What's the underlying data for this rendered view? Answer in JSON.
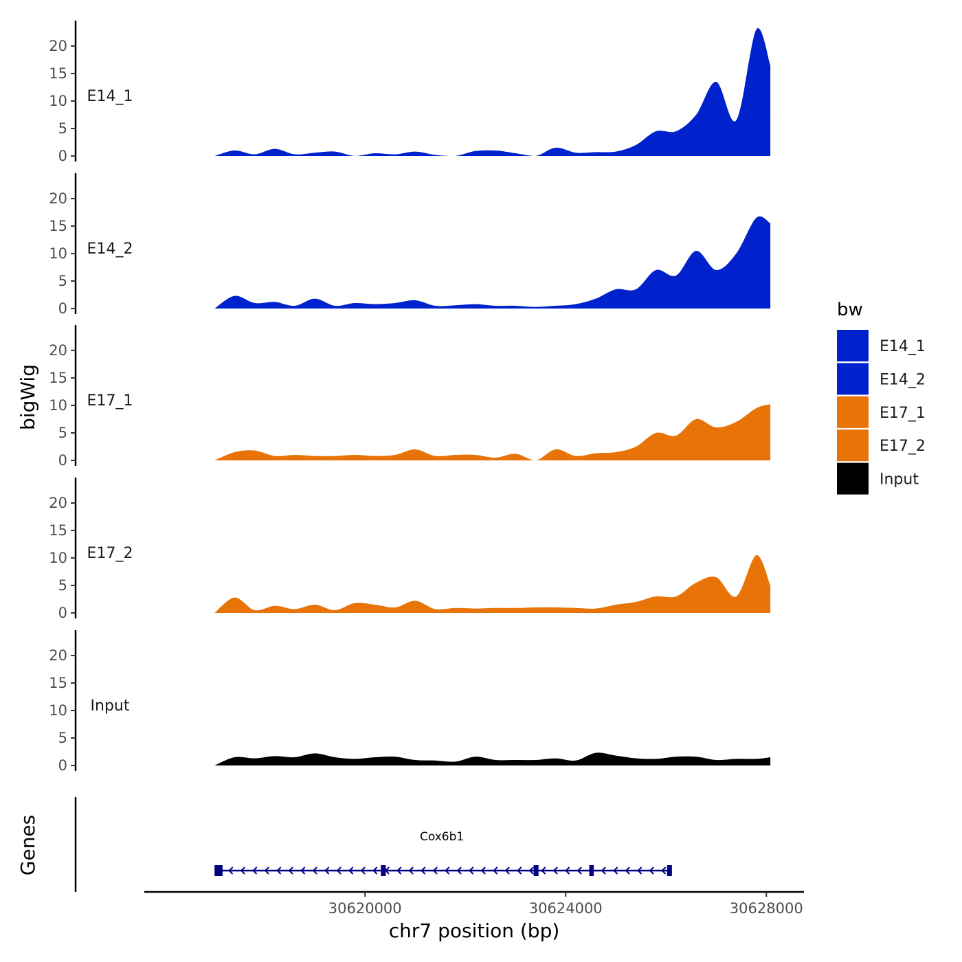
{
  "chart_data": {
    "type": "area",
    "x_axis": {
      "label": "chr7 position (bp)",
      "range": [
        30615600,
        30628750
      ],
      "ticks": [
        30620000,
        30624000,
        30628000
      ],
      "tick_labels": [
        "30620000",
        "30624000",
        "30628000"
      ]
    },
    "y_axis": {
      "label": "bigWig",
      "range": [
        0,
        24
      ],
      "ticks": [
        0,
        5,
        10,
        15,
        20
      ],
      "tick_labels": [
        "0",
        "5",
        "10",
        "15",
        "20"
      ]
    },
    "legend": {
      "title": "bw",
      "position": "right",
      "entries": [
        {
          "label": "E14_1",
          "color": "#0022CC"
        },
        {
          "label": "E14_2",
          "color": "#0022CC"
        },
        {
          "label": "E17_1",
          "color": "#E87306"
        },
        {
          "label": "E17_2",
          "color": "#E87306"
        },
        {
          "label": "Input",
          "color": "#000000"
        }
      ]
    },
    "x": [
      30617000,
      30617400,
      30617800,
      30618200,
      30618600,
      30619000,
      30619400,
      30619800,
      30620200,
      30620600,
      30621000,
      30621400,
      30621800,
      30622200,
      30622600,
      30623000,
      30623400,
      30623800,
      30624200,
      30624600,
      30625000,
      30625400,
      30625800,
      30626200,
      30626600,
      30627000,
      30627400,
      30627800,
      30628080
    ],
    "series": [
      {
        "name": "E14_1",
        "color": "#0022CC",
        "values": [
          0,
          1,
          0.3,
          1.3,
          0.3,
          0.6,
          0.8,
          0,
          0.5,
          0.3,
          0.8,
          0.2,
          0,
          0.9,
          1.0,
          0.5,
          0,
          1.5,
          0.6,
          0.7,
          0.8,
          2.0,
          4.5,
          4.5,
          7.5,
          13.5,
          6.5,
          23,
          16.5
        ]
      },
      {
        "name": "E14_2",
        "color": "#0022CC",
        "values": [
          0,
          2.3,
          1.0,
          1.2,
          0.5,
          1.8,
          0.5,
          1.0,
          0.8,
          1.0,
          1.5,
          0.5,
          0.6,
          0.8,
          0.5,
          0.5,
          0.3,
          0.5,
          0.8,
          1.8,
          3.5,
          3.5,
          7.0,
          6.0,
          10.5,
          7.0,
          10.0,
          16.5,
          15.5
        ]
      },
      {
        "name": "E17_1",
        "color": "#E87306",
        "values": [
          0,
          1.5,
          1.8,
          0.8,
          1.0,
          0.8,
          0.8,
          1.0,
          0.8,
          1.0,
          2.0,
          0.8,
          1.0,
          1.0,
          0.5,
          1.2,
          0,
          2.0,
          0.8,
          1.3,
          1.5,
          2.5,
          5.0,
          4.5,
          7.5,
          6.0,
          7.0,
          9.5,
          10.2
        ]
      },
      {
        "name": "E17_2",
        "color": "#E87306",
        "values": [
          0,
          2.8,
          0.5,
          1.3,
          0.7,
          1.5,
          0.5,
          1.8,
          1.5,
          1.0,
          2.2,
          0.7,
          0.9,
          0.8,
          0.9,
          0.9,
          1.0,
          1.0,
          0.9,
          0.8,
          1.5,
          2.0,
          3.0,
          3.0,
          5.5,
          6.5,
          3.0,
          10.5,
          5.0
        ]
      },
      {
        "name": "Input",
        "color": "#000000",
        "values": [
          0,
          1.5,
          1.3,
          1.7,
          1.5,
          2.2,
          1.5,
          1.2,
          1.5,
          1.6,
          1.0,
          0.9,
          0.7,
          1.6,
          1.0,
          1.0,
          1.0,
          1.3,
          0.9,
          2.3,
          1.8,
          1.3,
          1.2,
          1.6,
          1.6,
          1.0,
          1.2,
          1.2,
          1.5
        ]
      }
    ],
    "genes": {
      "track_label": "Genes",
      "name": "Cox6b1",
      "color": "#000080",
      "strand": "-",
      "start": 30617020,
      "end": 30626100,
      "exons": [
        [
          30617000,
          30617160
        ],
        [
          30620350,
          30620380
        ],
        [
          30623370,
          30623450
        ],
        [
          30624470,
          30624560
        ],
        [
          30626040,
          30626100
        ]
      ]
    }
  }
}
